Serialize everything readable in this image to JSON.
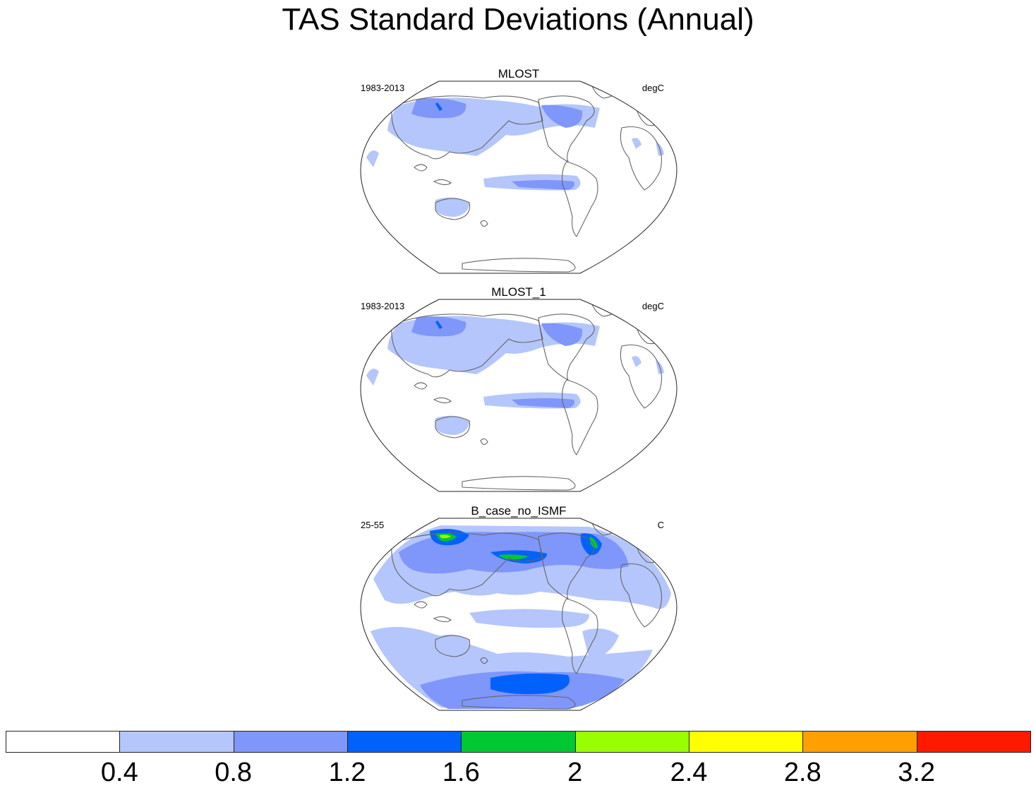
{
  "title": "TAS Standard Deviations (Annual)",
  "panels": [
    {
      "title": "MLOST",
      "left_label": "1983-2013",
      "right_label": "degC",
      "variant": "obs"
    },
    {
      "title": "MLOST_1",
      "left_label": "1983-2013",
      "right_label": "degC",
      "variant": "obs"
    },
    {
      "title": "B_case_no_ISMF",
      "left_label": "25-55",
      "right_label": "C",
      "variant": "model"
    }
  ],
  "colorbar": {
    "colors": [
      "#ffffff",
      "#b4c6fb",
      "#7f96fa",
      "#0062fb",
      "#00c832",
      "#99ff00",
      "#ffff00",
      "#ff9f00",
      "#ff1900"
    ],
    "labels": [
      "0.4",
      "0.8",
      "1.2",
      "1.6",
      "2",
      "2.4",
      "2.8",
      "3.2"
    ]
  }
}
